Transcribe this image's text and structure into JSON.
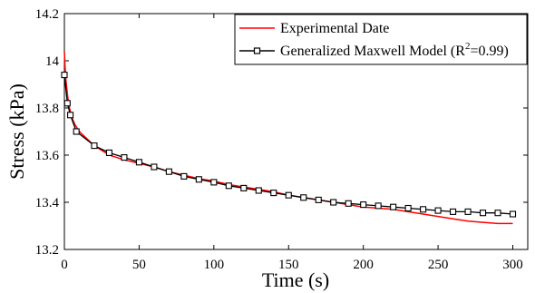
{
  "chart_data": {
    "type": "line",
    "title": "",
    "xlabel": "Time (s)",
    "ylabel": "Stress (kPa)",
    "xlim": [
      0,
      310
    ],
    "ylim": [
      13.2,
      14.2
    ],
    "xticks": [
      "0",
      "50",
      "100",
      "150",
      "200",
      "250",
      "300"
    ],
    "yticks": [
      "13.2",
      "13.4",
      "13.6",
      "13.8",
      "14",
      "14.2"
    ],
    "grid": false,
    "legend_position": "top-right",
    "series": [
      {
        "name": "Experimental Date",
        "color": "#ff0000",
        "marker": "none",
        "x": [
          0,
          0.5,
          1,
          2,
          3,
          5,
          7,
          10,
          15,
          20,
          25,
          30,
          40,
          50,
          60,
          70,
          80,
          90,
          100,
          110,
          120,
          130,
          140,
          150,
          160,
          170,
          180,
          190,
          200,
          210,
          220,
          230,
          240,
          250,
          260,
          270,
          280,
          290,
          300
        ],
        "y": [
          14.04,
          13.97,
          13.92,
          13.86,
          13.81,
          13.76,
          13.73,
          13.7,
          13.67,
          13.64,
          13.62,
          13.6,
          13.58,
          13.565,
          13.55,
          13.53,
          13.515,
          13.5,
          13.49,
          13.475,
          13.465,
          13.455,
          13.445,
          13.43,
          13.42,
          13.41,
          13.4,
          13.39,
          13.38,
          13.375,
          13.37,
          13.36,
          13.35,
          13.34,
          13.33,
          13.32,
          13.315,
          13.31,
          13.31
        ]
      },
      {
        "name": "Generalized Maxwell Model (R²=0.99)",
        "color": "#000000",
        "marker": "square",
        "x": [
          0,
          2,
          4,
          8,
          20,
          30,
          40,
          50,
          60,
          70,
          80,
          90,
          100,
          110,
          120,
          130,
          140,
          150,
          160,
          170,
          180,
          190,
          200,
          210,
          220,
          230,
          240,
          250,
          260,
          270,
          280,
          290,
          300
        ],
        "y": [
          13.94,
          13.82,
          13.77,
          13.7,
          13.64,
          13.61,
          13.59,
          13.57,
          13.55,
          13.53,
          13.51,
          13.497,
          13.485,
          13.47,
          13.46,
          13.45,
          13.44,
          13.43,
          13.42,
          13.41,
          13.4,
          13.395,
          13.39,
          13.385,
          13.38,
          13.375,
          13.37,
          13.365,
          13.36,
          13.36,
          13.355,
          13.355,
          13.35
        ]
      }
    ],
    "legend": {
      "entries": [
        {
          "label": "Experimental Date",
          "color": "#ff0000",
          "marker": "none"
        },
        {
          "label_main": "Generalized Maxwell Model (R",
          "label_sup": "2",
          "label_tail": "=0.99)",
          "color": "#000000",
          "marker": "square"
        }
      ]
    }
  }
}
